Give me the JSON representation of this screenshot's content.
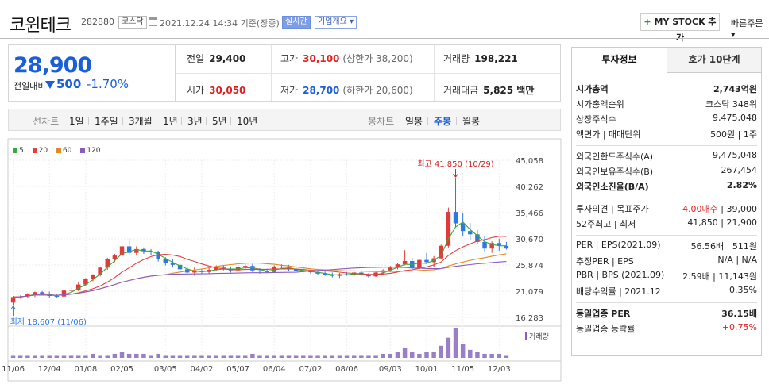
{
  "header": {
    "name": "코윈테크",
    "code": "282880",
    "market": "코스닥",
    "datetime": "2021.12.24 14:34 기준(장중)",
    "live_label": "실시간",
    "info_label": "기업개요 ▾",
    "mystock_plus": "+",
    "mystock_label": "MY STOCK 추가",
    "quick_order": "빠른주문 ▾"
  },
  "price": {
    "current": "28,900",
    "change_label": "전일대비",
    "change_value": "500",
    "change_pct": "-1.70%",
    "colors": {
      "down": "#1a5fd9",
      "up": "#e02020"
    }
  },
  "stats": {
    "prev_close_label": "전일",
    "prev_close": "29,400",
    "open_label": "시가",
    "open": "30,050",
    "high_label": "고가",
    "high": "30,100",
    "upper_limit": "(상한가 38,200)",
    "low_label": "저가",
    "low": "28,700",
    "lower_limit": "(하한가 20,600)",
    "volume_label": "거래량",
    "volume": "198,221",
    "amount_label": "거래대금",
    "amount": "5,825 백만"
  },
  "periodbar": {
    "line_label": "선차트",
    "line_periods": [
      "1일",
      "1주일",
      "3개월",
      "1년",
      "3년",
      "5년",
      "10년"
    ],
    "candle_label": "봉차트",
    "candle_periods": [
      "일봉",
      "주봉",
      "월봉"
    ],
    "active_candle": "주봉"
  },
  "chart_data": {
    "type": "candlestick",
    "legend": [
      "5",
      "20",
      "60",
      "120"
    ],
    "ma_colors": {
      "5": "#3aa83a",
      "20": "#e04040",
      "60": "#e08a20",
      "120": "#8a5cc0"
    },
    "ylim": [
      16283,
      45058
    ],
    "y_ticks": [
      "45,058",
      "40,262",
      "35,466",
      "30,670",
      "25,874",
      "21,079",
      "16,283"
    ],
    "x_labels": [
      "11/06",
      "12/04",
      "01/08",
      "02/05",
      "03/05",
      "04/02",
      "05/07",
      "06/04",
      "07/02",
      "08/06",
      "09/03",
      "10/01",
      "11/05",
      "12/03"
    ],
    "high_annotation": "최고 41,850 (10/29)",
    "low_annotation": "최저 18,607 (11/06)",
    "volume_label": "거래량",
    "candles": [
      [
        19000,
        20200,
        18607,
        20000
      ],
      [
        20000,
        20300,
        19700,
        20100
      ],
      [
        20100,
        20700,
        19800,
        20500
      ],
      [
        20500,
        21000,
        20000,
        20900
      ],
      [
        20900,
        21100,
        20300,
        20500
      ],
      [
        20500,
        21000,
        19900,
        20200
      ],
      [
        20200,
        20500,
        19800,
        20100
      ],
      [
        20100,
        21300,
        20000,
        21200
      ],
      [
        21200,
        21800,
        20800,
        21300
      ],
      [
        21300,
        22800,
        21100,
        22300
      ],
      [
        22300,
        23500,
        22000,
        23300
      ],
      [
        23300,
        24200,
        22900,
        24000
      ],
      [
        24000,
        25600,
        23800,
        25400
      ],
      [
        25400,
        27200,
        25000,
        27000
      ],
      [
        27000,
        27900,
        26400,
        27600
      ],
      [
        27600,
        29700,
        27000,
        29300
      ],
      [
        29300,
        30700,
        27700,
        28100
      ],
      [
        28100,
        29300,
        27600,
        28800
      ],
      [
        28800,
        29100,
        27900,
        28400
      ],
      [
        28400,
        28800,
        27600,
        28200
      ],
      [
        28200,
        28500,
        26500,
        26900
      ],
      [
        26900,
        27300,
        25800,
        26200
      ],
      [
        26200,
        26900,
        25400,
        25900
      ],
      [
        25900,
        26400,
        24700,
        25100
      ],
      [
        25100,
        25600,
        24100,
        24500
      ],
      [
        24500,
        25500,
        23900,
        24800
      ],
      [
        24800,
        25200,
        24200,
        24600
      ],
      [
        24600,
        25300,
        24300,
        25000
      ],
      [
        25000,
        25800,
        24700,
        25400
      ],
      [
        25400,
        25800,
        24900,
        25100
      ],
      [
        25100,
        25600,
        24500,
        24900
      ],
      [
        24900,
        25800,
        24700,
        25500
      ],
      [
        25500,
        26000,
        25100,
        25700
      ],
      [
        25700,
        26100,
        24600,
        24900
      ],
      [
        24900,
        25300,
        24300,
        24700
      ],
      [
        24700,
        25200,
        24400,
        24600
      ],
      [
        24600,
        25800,
        24500,
        25600
      ],
      [
        25600,
        26000,
        25100,
        25400
      ],
      [
        25400,
        25900,
        24800,
        25100
      ],
      [
        25100,
        25500,
        24600,
        24800
      ],
      [
        24800,
        25200,
        24500,
        24700
      ],
      [
        24700,
        25000,
        24300,
        24600
      ],
      [
        24600,
        24900,
        24000,
        24300
      ],
      [
        24300,
        24700,
        23900,
        24100
      ],
      [
        24100,
        24500,
        23600,
        23900
      ],
      [
        23900,
        24400,
        23500,
        24200
      ],
      [
        24200,
        24600,
        23900,
        24100
      ],
      [
        24100,
        24700,
        23800,
        24500
      ],
      [
        24500,
        24800,
        23900,
        24000
      ],
      [
        24000,
        24400,
        23600,
        23800
      ],
      [
        23800,
        24600,
        23700,
        24500
      ],
      [
        24500,
        25100,
        24200,
        24900
      ],
      [
        24900,
        25700,
        24600,
        25400
      ],
      [
        25400,
        26300,
        25100,
        26000
      ],
      [
        26000,
        28600,
        25800,
        26600
      ],
      [
        26600,
        27200,
        25000,
        25300
      ],
      [
        25300,
        27000,
        25100,
        26800
      ],
      [
        26800,
        28100,
        26000,
        26400
      ],
      [
        26400,
        27500,
        25500,
        27100
      ],
      [
        27100,
        29600,
        26900,
        29400
      ],
      [
        29400,
        36400,
        29100,
        35600
      ],
      [
        35600,
        41850,
        32800,
        33500
      ],
      [
        33500,
        35400,
        31200,
        32100
      ],
      [
        32100,
        33600,
        30400,
        31500
      ],
      [
        31500,
        32300,
        29800,
        30100
      ],
      [
        30100,
        31100,
        28400,
        28900
      ],
      [
        28900,
        30200,
        28100,
        29900
      ],
      [
        29900,
        30700,
        28500,
        29400
      ],
      [
        29400,
        30100,
        28700,
        28900
      ]
    ],
    "volumes": [
      1,
      1,
      1,
      1,
      1,
      1,
      1,
      1,
      1,
      1,
      1,
      2,
      1,
      1,
      2,
      3,
      2,
      2,
      2,
      1,
      2,
      1,
      1,
      1,
      1,
      1,
      1,
      1,
      1,
      1,
      1,
      1,
      1,
      2,
      1,
      1,
      1,
      1,
      1,
      1,
      1,
      1,
      1,
      1,
      1,
      1,
      1,
      1,
      1,
      1,
      1,
      2,
      2,
      3,
      5,
      3,
      2,
      3,
      3,
      6,
      10,
      15,
      7,
      4,
      3,
      2,
      2,
      2,
      1
    ]
  },
  "invest": {
    "tab_active": "투자정보",
    "tab_other": "호가 10단계",
    "rows1": [
      {
        "label": "시가총액",
        "value": "2,743억원",
        "bold": true
      },
      {
        "label": "시가총액순위",
        "value": "코스닥 348위"
      },
      {
        "label": "상장주식수",
        "value": "9,475,048"
      },
      {
        "label": "액면가 | 매매단위",
        "value": "500원 | 1주"
      }
    ],
    "rows2": [
      {
        "label": "외국인한도주식수(A)",
        "value": "9,475,048"
      },
      {
        "label": "외국인보유주식수(B)",
        "value": "267,454"
      },
      {
        "label": "외국인소진율(B/A)",
        "value": "2.82%",
        "bold": true
      }
    ],
    "opinion_label": "투자의견 | 목표주가",
    "opinion_value": "4.00매수",
    "target_value": "| 39,000",
    "w52_label": "52주최고 | 최저",
    "w52_value": "41,850 | 21,900",
    "rows4": [
      {
        "label": "PER | EPS(2021.09)",
        "value": "56.56배 | 511원"
      },
      {
        "label": "추정PER | EPS",
        "value": "N/A | N/A"
      },
      {
        "label": "PBR | BPS (2021.09)",
        "value": "2.59배 | 11,143원"
      },
      {
        "label": "배당수익률 | 2021.12",
        "value": "0.35%"
      }
    ],
    "sector_per_label": "동일업종 PER",
    "sector_per_value": "36.15배",
    "sector_chg_label": "동일업종 등락률",
    "sector_chg_value": "+0.75%"
  }
}
